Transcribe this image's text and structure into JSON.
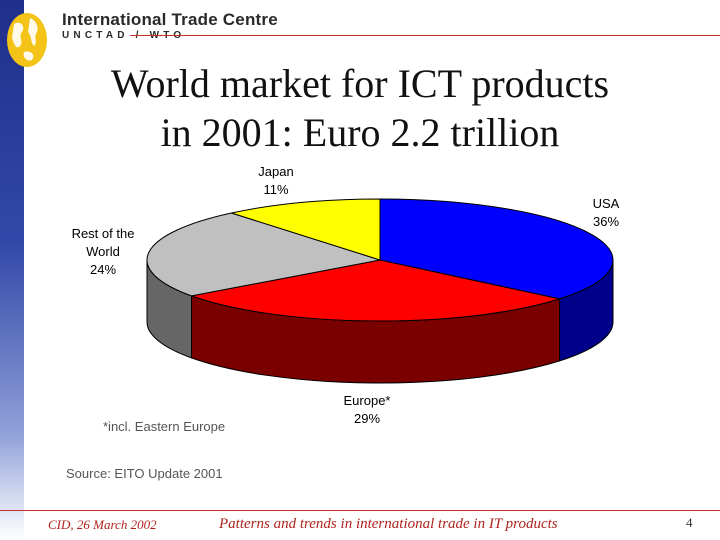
{
  "header": {
    "org_name": "International Trade Centre",
    "org_sub": "UNCTAD / WTO",
    "logo": "globe-logo"
  },
  "slide": {
    "title_line1": "World market for ICT products",
    "title_line2": "in 2001:  Euro 2.2 trillion",
    "note": "*incl. Eastern Europe",
    "source": "Source: EITO Update 2001"
  },
  "footer": {
    "left": "CID, 26 March 2002",
    "center": "Patterns and trends in international trade in IT products",
    "page": "4"
  },
  "colors": {
    "accent_red": "#c9302c",
    "sidebar_blue": "#2a3d9c"
  },
  "chart_data": {
    "type": "pie",
    "style": "3d",
    "slices": [
      {
        "label_lines": [
          "USA"
        ],
        "pct_label": "36%",
        "value": 36,
        "color": "#0000ff",
        "side_color": "#00008b"
      },
      {
        "label_lines": [
          "Europe*"
        ],
        "pct_label": "29%",
        "value": 29,
        "color": "#ff0000",
        "side_color": "#7a0000"
      },
      {
        "label_lines": [
          "Rest of the",
          "World"
        ],
        "pct_label": "24%",
        "value": 24,
        "color": "#c0c0c0",
        "side_color": "#666666"
      },
      {
        "label_lines": [
          "Japan"
        ],
        "pct_label": "11%",
        "value": 11,
        "color": "#ffff00",
        "side_color": "#8a8a00"
      }
    ]
  }
}
